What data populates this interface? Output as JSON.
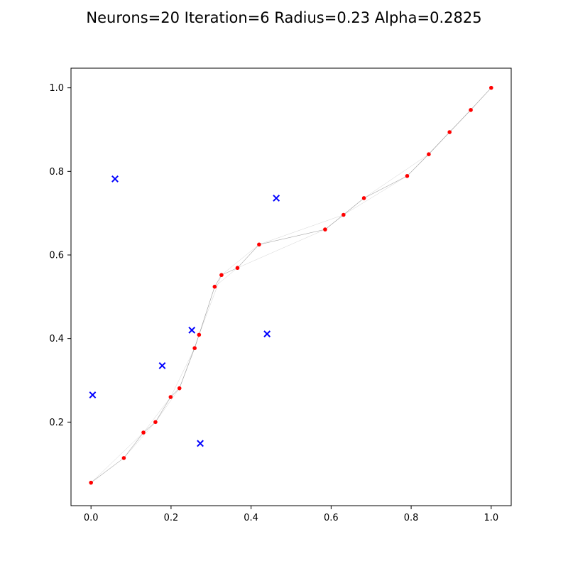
{
  "chart_data": {
    "type": "scatter",
    "title": "Neurons=20 Iteration=6 Radius=0.23 Alpha=0.2825",
    "xlabel": "",
    "ylabel": "",
    "xlim": [
      -0.05,
      1.05
    ],
    "ylim": [
      0.0,
      1.047
    ],
    "x_ticks": [
      0.0,
      0.2,
      0.4,
      0.6,
      0.8,
      1.0
    ],
    "x_tick_labels": [
      "0.0",
      "0.2",
      "0.4",
      "0.6",
      "0.8",
      "1.0"
    ],
    "y_ticks": [
      0.2,
      0.4,
      0.6,
      0.8,
      1.0
    ],
    "y_tick_labels": [
      "0.2",
      "0.4",
      "0.6",
      "0.8",
      "1.0"
    ],
    "grid": false,
    "series": [
      {
        "marker": "x",
        "color": "#0000ff",
        "x": [
          0.06,
          0.004,
          0.178,
          0.252,
          0.273,
          0.44,
          0.463
        ],
        "y": [
          0.782,
          0.265,
          0.335,
          0.42,
          0.149,
          0.411,
          0.736
        ]
      },
      {
        "marker": "dot",
        "color": "#ff0000",
        "connect": "#808080",
        "x": [
          0.0,
          0.082,
          0.131,
          0.161,
          0.199,
          0.221,
          0.259,
          0.27,
          0.309,
          0.326,
          0.366,
          0.42,
          0.585,
          0.631,
          0.682,
          0.79,
          0.844,
          0.896,
          0.949,
          1.0
        ],
        "y": [
          0.055,
          0.114,
          0.175,
          0.2,
          0.26,
          0.281,
          0.377,
          0.409,
          0.524,
          0.552,
          0.569,
          0.625,
          0.661,
          0.696,
          0.736,
          0.789,
          0.841,
          0.894,
          0.947,
          1.0
        ]
      }
    ]
  }
}
